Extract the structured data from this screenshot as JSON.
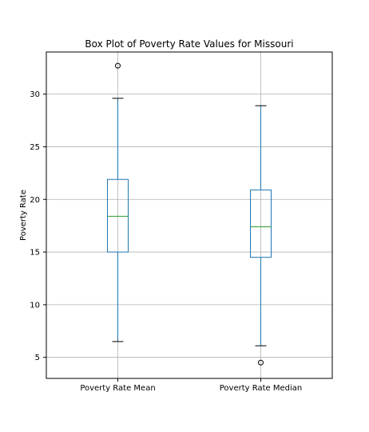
{
  "chart_data": {
    "type": "box",
    "title": "Box Plot of Poverty Rate Values for Missouri",
    "xlabel": "",
    "ylabel": "Poverty Rate",
    "ylim": [
      3.0,
      34.0
    ],
    "yticks": [
      5,
      10,
      15,
      20,
      25,
      30
    ],
    "grid": true,
    "series": [
      {
        "name": "Poverty Rate Mean",
        "whisker_low": 6.5,
        "q1": 15.0,
        "median": 18.4,
        "q3": 21.9,
        "whisker_high": 29.6,
        "outliers": [
          32.7
        ]
      },
      {
        "name": "Poverty Rate Median",
        "whisker_low": 6.1,
        "q1": 14.5,
        "median": 17.4,
        "q3": 20.9,
        "whisker_high": 28.9,
        "outliers": [
          4.5
        ]
      }
    ],
    "colors": {
      "box": "#1f77b4",
      "median": "#2ca02c",
      "whisker_cap": "#000000",
      "grid": "#b0b0b0"
    }
  }
}
